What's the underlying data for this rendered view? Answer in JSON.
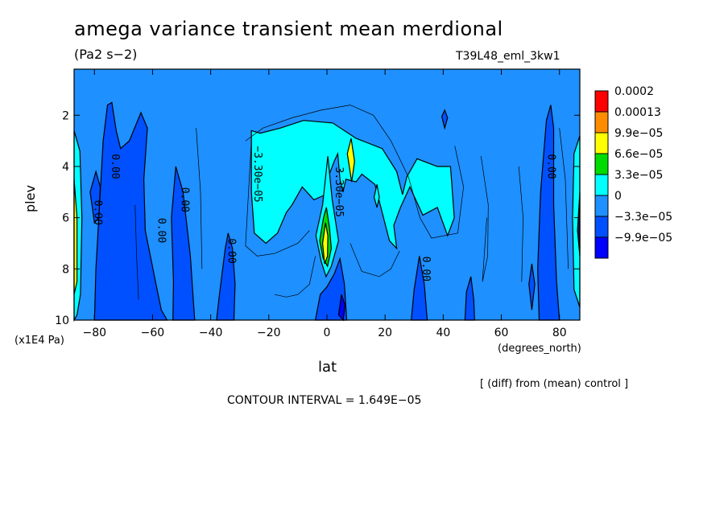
{
  "title": "amega variance transient mean merdional",
  "units": "(Pa2 s−2)",
  "run_label": "T39L48_eml_3kw1",
  "y_units": "(x1E4 Pa)",
  "x_units": "(degrees_north)",
  "diff_note": "[ (diff) from (mean) control ]",
  "contour_interval": "CONTOUR INTERVAL = 1.649E−05",
  "chart_data": {
    "type": "contour",
    "title": "amega variance transient mean merdional",
    "xlabel": "lat",
    "ylabel": "plev",
    "x_ticks": [
      -80,
      -60,
      -40,
      -20,
      0,
      20,
      40,
      60,
      80
    ],
    "x_tick_labels": [
      "−80",
      "−60",
      "−40",
      "−20",
      "0",
      "20",
      "40",
      "60",
      "80"
    ],
    "y_ticks": [
      2,
      4,
      6,
      8,
      10
    ],
    "y_tick_labels": [
      "2",
      "4",
      "6",
      "8",
      "10"
    ],
    "xlim": [
      -87,
      87
    ],
    "ylim": [
      10,
      0.2
    ],
    "legend": {
      "placement": "right",
      "levels": [
        "0.0002",
        "0.00013",
        "9.9e−05",
        "6.6e−05",
        "3.3e−05",
        "0",
        "−3.3e−05",
        "−9.9e−05"
      ],
      "colors": [
        "#ff0000",
        "#ff8c00",
        "#ffff00",
        "#00dc00",
        "#00ffff",
        "#1e90ff",
        "#0050ff",
        "#0000ff"
      ]
    },
    "contour_labels": [
      {
        "text": "0.00",
        "lat": -74,
        "plev": 4.0
      },
      {
        "text": "0.00",
        "lat": -80,
        "plev": 5.8
      },
      {
        "text": "0.00",
        "lat": -58,
        "plev": 6.5
      },
      {
        "text": "0.00",
        "lat": -50,
        "plev": 5.3
      },
      {
        "text": "0.00",
        "lat": -34,
        "plev": 7.3
      },
      {
        "text": "−3.30e−05",
        "lat": -25,
        "plev": 4.3
      },
      {
        "text": "3.30e−05",
        "lat": 3,
        "plev": 5.0
      },
      {
        "text": "0.00",
        "lat": 33,
        "plev": 8.0
      },
      {
        "text": "0.00",
        "lat": 76,
        "plev": 4.0
      }
    ],
    "regions": [
      {
        "level": "3.3e−05",
        "desc": "broad positive band",
        "lat_range": [
          -26,
          44
        ],
        "plev_range": [
          2.2,
          7.5
        ]
      },
      {
        "level": "6.6e−05",
        "desc": "equatorial maxima",
        "lat_range": [
          -3,
          9
        ],
        "plev_range": [
          3.5,
          8.5
        ]
      },
      {
        "level": "9.9e−05",
        "desc": "equatorial peak",
        "lat_range": [
          -2,
          1
        ],
        "plev_range": [
          6.2,
          8.0
        ]
      },
      {
        "level": "−3.3e−05",
        "desc": "southern negative columns",
        "lat_range": [
          -80,
          -32
        ],
        "plev_range": [
          1.5,
          10
        ]
      },
      {
        "level": "−3.3e−05",
        "desc": "northern negative columns",
        "lat_range": [
          28,
          85
        ],
        "plev_range": [
          1.5,
          10
        ]
      },
      {
        "level": "3.3e−05",
        "desc": "polar edges",
        "lat_range": [
          -87,
          -84
        ],
        "plev_range": [
          3,
          10
        ]
      }
    ]
  }
}
